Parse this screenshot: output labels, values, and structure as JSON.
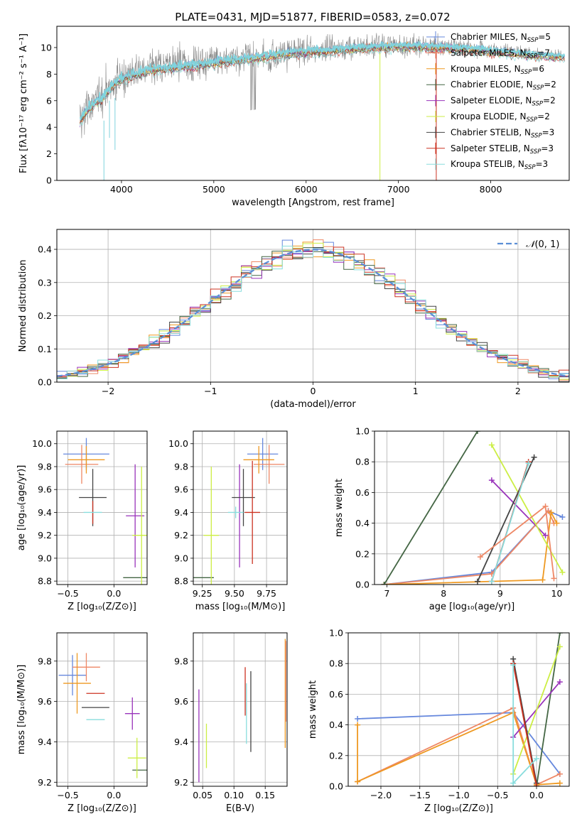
{
  "figure": {
    "title": "PLATE=0431, MJD=51877, FIBERID=0583, z=0.072"
  },
  "colors": {
    "series": [
      "#6688dd",
      "#ee8866",
      "#ee9922",
      "#446644",
      "#9933bb",
      "#ccee44",
      "#444444",
      "#cc3322",
      "#88dddd"
    ],
    "spectrum_data": "#888888",
    "spectrum_model": "#7fd3dd",
    "gaussian": "#5b8fd6"
  },
  "chart_data": [
    {
      "id": "spectrum",
      "type": "line",
      "title": "PLATE=0431, MJD=51877, FIBERID=0583, z=0.072",
      "xlabel": "wavelength [Angstrom, rest frame]",
      "ylabel": "Flux [fλ10⁻¹⁷ erg cm⁻² s⁻¹ A⁻¹]",
      "xlim": [
        3300,
        8850
      ],
      "ylim": [
        0,
        11.6
      ],
      "xticks": [
        4000,
        5000,
        6000,
        7000,
        8000
      ],
      "yticks": [
        0,
        2,
        4,
        6,
        8,
        10
      ],
      "grid": false,
      "legend_position": "right",
      "legend": [
        "Chabrier MILES, N_SSP=5",
        "Salpeter MILES, N_SSP=7",
        "Kroupa MILES, N_SSP=6",
        "Chabrier ELODIE, N_SSP=2",
        "Salpeter ELODIE, N_SSP=2",
        "Kroupa ELODIE, N_SSP=2",
        "Chabrier STELIB, N_SSP=3",
        "Salpeter STELIB, N_SSP=3",
        "Kroupa STELIB, N_SSP=3"
      ],
      "legend_base": [
        "Chabrier MILES, N",
        "Salpeter MILES, N",
        "Kroupa MILES, N",
        "Chabrier ELODIE, N",
        "Salpeter ELODIE, N",
        "Kroupa ELODIE, N",
        "Chabrier STELIB, N",
        "Salpeter STELIB, N",
        "Kroupa STELIB, N"
      ],
      "legend_sub": "SSP",
      "legend_n": [
        "=5",
        "=7",
        "=6",
        "=2",
        "=2",
        "=2",
        "=3",
        "=3",
        "=3"
      ],
      "continuum": {
        "x": [
          3550,
          3650,
          3800,
          3950,
          4100,
          4300,
          4500,
          4800,
          5100,
          5400,
          5700,
          6000,
          6300,
          6600,
          6900,
          7200,
          7500,
          7800,
          8100,
          8400,
          8800
        ],
        "y": [
          4.6,
          5.6,
          6.4,
          7.6,
          8.0,
          8.4,
          8.6,
          8.8,
          9.1,
          9.3,
          9.6,
          9.8,
          9.9,
          10.1,
          10.2,
          10.2,
          10.1,
          10.0,
          9.8,
          9.6,
          9.4
        ]
      },
      "data_x_range": [
        3550,
        8800
      ],
      "noise_amplitude_blue": 2.6,
      "noise_amplitude_red": 0.6
    },
    {
      "id": "residuals",
      "type": "step",
      "xlabel": "(data-model)/error",
      "ylabel": "Normed distribution",
      "xlim": [
        -2.5,
        2.5
      ],
      "ylim": [
        0,
        0.46
      ],
      "xticks": [
        -2,
        -1,
        0,
        1,
        2
      ],
      "yticks": [
        0.0,
        0.1,
        0.2,
        0.3,
        0.4
      ],
      "grid": true,
      "legend_position": "top-right",
      "gaussian_label": "N(0,1)",
      "gaussian_label_script": "𝒩",
      "gaussian_label_args": "(0, 1)",
      "bin_width": 0.1,
      "hist_scatter": 0.018
    },
    {
      "id": "age-vs-Z",
      "type": "errorbar",
      "xlabel": "Z [log₁₀(Z/Z⊙)]",
      "ylabel": "age  [log₁₀(age/yr)]",
      "xlim": [
        -0.62,
        0.36
      ],
      "ylim": [
        8.77,
        10.11
      ],
      "xticks": [
        -0.5,
        0.0
      ],
      "yticks": [
        8.8,
        9.0,
        9.2,
        9.4,
        9.6,
        9.8,
        10.0
      ],
      "grid": true,
      "points": [
        {
          "x": -0.3,
          "y": 9.91,
          "xerr": 0.25,
          "yerr": 0.14,
          "color": 0
        },
        {
          "x": -0.35,
          "y": 9.82,
          "xerr": 0.18,
          "yerr": 0.17,
          "color": 1
        },
        {
          "x": -0.3,
          "y": 9.86,
          "xerr": 0.2,
          "yerr": 0.12,
          "color": 2
        },
        {
          "x": 0.3,
          "y": 8.83,
          "xerr": 0.2,
          "yerr": 0.0,
          "color": 3
        },
        {
          "x": 0.23,
          "y": 9.37,
          "xerr": 0.1,
          "yerr": 0.45,
          "color": 4
        },
        {
          "x": 0.3,
          "y": 9.2,
          "xerr": 0.1,
          "yerr": 0.6,
          "color": 5
        },
        {
          "x": -0.23,
          "y": 9.53,
          "xerr": 0.15,
          "yerr": 0.25,
          "color": 6
        },
        {
          "x": -0.23,
          "y": 9.4,
          "xerr": 0.0,
          "yerr": 0.1,
          "color": 7
        },
        {
          "x": -0.23,
          "y": 9.4,
          "xerr": 0.1,
          "yerr": 0.0,
          "color": 8
        }
      ]
    },
    {
      "id": "age-vs-mass",
      "type": "errorbar",
      "xlabel": "mass [log₁₀(M/M⊙)]",
      "ylabel": "",
      "xlim": [
        9.18,
        9.91
      ],
      "ylim": [
        8.77,
        10.11
      ],
      "xticks": [
        9.25,
        9.5,
        9.75
      ],
      "yticks": [
        8.8,
        9.0,
        9.2,
        9.4,
        9.6,
        9.8,
        10.0
      ],
      "grid": true,
      "points": [
        {
          "x": 9.72,
          "y": 9.91,
          "xerr": 0.12,
          "yerr": 0.14,
          "color": 0
        },
        {
          "x": 9.77,
          "y": 9.82,
          "xerr": 0.12,
          "yerr": 0.17,
          "color": 1
        },
        {
          "x": 9.69,
          "y": 9.86,
          "xerr": 0.12,
          "yerr": 0.12,
          "color": 2
        },
        {
          "x": 9.26,
          "y": 8.83,
          "xerr": 0.08,
          "yerr": 0.0,
          "color": 3
        },
        {
          "x": 9.54,
          "y": 9.37,
          "xerr": 0.0,
          "yerr": 0.45,
          "color": 4
        },
        {
          "x": 9.32,
          "y": 9.2,
          "xerr": 0.06,
          "yerr": 0.6,
          "color": 5
        },
        {
          "x": 9.57,
          "y": 9.53,
          "xerr": 0.09,
          "yerr": 0.25,
          "color": 6
        },
        {
          "x": 9.64,
          "y": 9.4,
          "xerr": 0.06,
          "yerr": 0.45,
          "color": 7
        },
        {
          "x": 9.51,
          "y": 9.4,
          "xerr": 0.06,
          "yerr": 0.05,
          "color": 8
        }
      ]
    },
    {
      "id": "weight-vs-age",
      "type": "line",
      "xlabel": "age  [log₁₀(age/yr)]",
      "ylabel": "mass weight",
      "xlim": [
        6.78,
        10.22
      ],
      "ylim": [
        0,
        1
      ],
      "xticks": [
        7,
        8,
        9,
        10
      ],
      "yticks": [
        0.0,
        0.2,
        0.4,
        0.6,
        0.8,
        1.0
      ],
      "grid": true,
      "series": [
        {
          "color": 0,
          "points": [
            [
              6.95,
              0.0
            ],
            [
              8.85,
              0.08
            ],
            [
              9.85,
              0.48
            ],
            [
              10.1,
              0.44
            ]
          ]
        },
        {
          "color": 1,
          "points": [
            [
              6.95,
              0.0
            ],
            [
              8.85,
              0.07
            ],
            [
              9.85,
              0.48
            ],
            [
              9.95,
              0.4
            ]
          ]
        },
        {
          "color": 2,
          "points": [
            [
              6.95,
              0.0
            ],
            [
              9.75,
              0.03
            ],
            [
              9.9,
              0.47
            ],
            [
              10.0,
              0.4
            ]
          ]
        },
        {
          "color": 3,
          "points": [
            [
              6.95,
              0.0
            ],
            [
              8.6,
              1.0
            ]
          ]
        },
        {
          "color": 4,
          "points": [
            [
              8.85,
              0.68
            ],
            [
              9.8,
              0.32
            ]
          ]
        },
        {
          "color": 5,
          "points": [
            [
              8.85,
              0.91
            ],
            [
              10.1,
              0.08
            ]
          ]
        },
        {
          "color": 6,
          "points": [
            [
              8.6,
              0.02
            ],
            [
              9.6,
              0.83
            ]
          ]
        },
        {
          "color": 7,
          "points": [
            [
              8.85,
              0.02
            ],
            [
              9.5,
              0.8
            ]
          ]
        },
        {
          "color": 8,
          "points": [
            [
              8.85,
              0.02
            ],
            [
              9.5,
              0.79
            ]
          ]
        },
        {
          "color": 1,
          "points": [
            [
              8.65,
              0.18
            ],
            [
              9.8,
              0.51
            ],
            [
              9.95,
              0.04
            ]
          ]
        }
      ]
    },
    {
      "id": "mass-vs-Z",
      "type": "errorbar",
      "xlabel": "Z [log₁₀(Z/Z⊙)]",
      "ylabel": "mass [log₁₀(M/M⊙)]",
      "xlim": [
        -0.62,
        0.36
      ],
      "ylim": [
        9.18,
        9.94
      ],
      "xticks": [
        -0.5,
        0.0
      ],
      "yticks": [
        9.2,
        9.4,
        9.6,
        9.8
      ],
      "grid": true,
      "points": [
        {
          "x": -0.45,
          "y": 9.73,
          "xerr": 0.15,
          "yerr": 0.1,
          "color": 0
        },
        {
          "x": -0.3,
          "y": 9.77,
          "xerr": 0.15,
          "yerr": 0.07,
          "color": 1
        },
        {
          "x": -0.4,
          "y": 9.69,
          "xerr": 0.15,
          "yerr": 0.15,
          "color": 2
        },
        {
          "x": 0.3,
          "y": 9.26,
          "xerr": 0.1,
          "yerr": 0.0,
          "color": 3
        },
        {
          "x": 0.2,
          "y": 9.54,
          "xerr": 0.08,
          "yerr": 0.08,
          "color": 4
        },
        {
          "x": 0.25,
          "y": 9.32,
          "xerr": 0.1,
          "yerr": 0.1,
          "color": 5
        },
        {
          "x": -0.2,
          "y": 9.57,
          "xerr": 0.15,
          "yerr": 0.0,
          "color": 6
        },
        {
          "x": -0.2,
          "y": 9.64,
          "xerr": 0.1,
          "yerr": 0.0,
          "color": 7
        },
        {
          "x": -0.2,
          "y": 9.51,
          "xerr": 0.1,
          "yerr": 0.0,
          "color": 8
        }
      ]
    },
    {
      "id": "mass-vs-ebv",
      "type": "errorbar",
      "xlabel": "E(B-V)",
      "ylabel": "",
      "xlim": [
        0.035,
        0.185
      ],
      "ylim": [
        9.18,
        9.94
      ],
      "xticks": [
        0.05,
        0.1,
        0.15
      ],
      "yticks": [
        9.2,
        9.4,
        9.6,
        9.8
      ],
      "grid": true,
      "points": [
        {
          "x": 0.044,
          "y": 9.43,
          "xerr": 0.0,
          "yerr": 0.23,
          "color": 4
        },
        {
          "x": 0.056,
          "y": 9.38,
          "xerr": 0.0,
          "yerr": 0.11,
          "color": 5
        },
        {
          "x": 0.118,
          "y": 9.65,
          "xerr": 0.0,
          "yerr": 0.12,
          "color": 7
        },
        {
          "x": 0.12,
          "y": 9.54,
          "xerr": 0.0,
          "yerr": 0.15,
          "color": 8
        },
        {
          "x": 0.127,
          "y": 9.55,
          "xerr": 0.0,
          "yerr": 0.2,
          "color": 6
        },
        {
          "x": 0.182,
          "y": 9.64,
          "xerr": 0.0,
          "yerr": 0.27,
          "color": 2
        },
        {
          "x": 0.183,
          "y": 9.7,
          "xerr": 0.0,
          "yerr": 0.2,
          "color": 1
        }
      ]
    },
    {
      "id": "weight-vs-Z",
      "type": "line",
      "xlabel": "Z [log₁₀(Z/Z⊙)]",
      "ylabel": "mass weight",
      "xlim": [
        -2.42,
        0.42
      ],
      "ylim": [
        0,
        1
      ],
      "xticks": [
        -2.0,
        -1.5,
        -1.0,
        -0.5,
        0.0
      ],
      "yticks": [
        0.0,
        0.2,
        0.4,
        0.6,
        0.8,
        1.0
      ],
      "grid": true,
      "series": [
        {
          "color": 0,
          "points": [
            [
              -2.3,
              0.44
            ],
            [
              -0.3,
              0.48
            ],
            [
              0.3,
              0.08
            ]
          ]
        },
        {
          "color": 1,
          "points": [
            [
              -2.3,
              0.03
            ],
            [
              -0.3,
              0.51
            ],
            [
              0.0,
              0.01
            ],
            [
              0.3,
              0.08
            ]
          ]
        },
        {
          "color": 2,
          "points": [
            [
              -2.3,
              0.4
            ],
            [
              -2.3,
              0.03
            ],
            [
              -0.3,
              0.48
            ],
            [
              0.0,
              0.01
            ],
            [
              0.3,
              0.02
            ]
          ]
        },
        {
          "color": 3,
          "points": [
            [
              0.0,
              0.0
            ],
            [
              0.3,
              1.0
            ]
          ]
        },
        {
          "color": 4,
          "points": [
            [
              -0.3,
              0.32
            ],
            [
              0.3,
              0.68
            ]
          ]
        },
        {
          "color": 5,
          "points": [
            [
              -0.3,
              0.08
            ],
            [
              0.3,
              0.91
            ]
          ]
        },
        {
          "color": 6,
          "points": [
            [
              -0.3,
              0.83
            ],
            [
              0.0,
              0.02
            ]
          ]
        },
        {
          "color": 7,
          "points": [
            [
              -0.3,
              0.8
            ],
            [
              0.0,
              0.0
            ]
          ]
        },
        {
          "color": 8,
          "points": [
            [
              -0.3,
              0.79
            ],
            [
              -0.3,
              0.02
            ],
            [
              0.0,
              0.18
            ]
          ]
        }
      ]
    }
  ]
}
